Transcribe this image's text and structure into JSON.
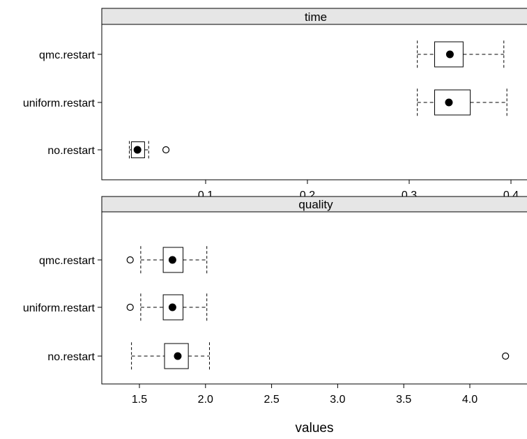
{
  "xlabel": "values",
  "chart_data": [
    {
      "type": "boxplot",
      "panel": "time",
      "categories": [
        "no.restart",
        "uniform.restart",
        "qmc.restart"
      ],
      "xlim": [
        0.0,
        0.4
      ],
      "xticks": [
        0.1,
        0.2,
        0.3,
        0.4
      ],
      "xtick_labels": [
        "0.1",
        "0.2",
        "0.3",
        "0.4"
      ],
      "boxes": [
        {
          "category": "no.restart",
          "whisker_low": 0.025,
          "q1": 0.027,
          "median": 0.033,
          "q3": 0.04,
          "whisker_high": 0.044,
          "outliers": [
            0.061
          ]
        },
        {
          "category": "uniform.restart",
          "whisker_low": 0.308,
          "q1": 0.325,
          "median": 0.339,
          "q3": 0.36,
          "whisker_high": 0.396,
          "outliers": []
        },
        {
          "category": "qmc.restart",
          "whisker_low": 0.308,
          "q1": 0.325,
          "median": 0.34,
          "q3": 0.353,
          "whisker_high": 0.393,
          "outliers": []
        }
      ]
    },
    {
      "type": "boxplot",
      "panel": "quality",
      "categories": [
        "no.restart",
        "uniform.restart",
        "qmc.restart"
      ],
      "xlim": [
        1.25,
        4.35
      ],
      "xticks": [
        1.5,
        2.0,
        2.5,
        3.0,
        3.5,
        4.0
      ],
      "xtick_labels": [
        "1.5",
        "2.0",
        "2.5",
        "3.0",
        "3.5",
        "4.0"
      ],
      "boxes": [
        {
          "category": "no.restart",
          "whisker_low": 1.44,
          "q1": 1.69,
          "median": 1.79,
          "q3": 1.87,
          "whisker_high": 2.03,
          "outliers": [
            4.27
          ]
        },
        {
          "category": "uniform.restart",
          "whisker_low": 1.51,
          "q1": 1.68,
          "median": 1.75,
          "q3": 1.83,
          "whisker_high": 2.01,
          "outliers": [
            1.43
          ]
        },
        {
          "category": "qmc.restart",
          "whisker_low": 1.51,
          "q1": 1.68,
          "median": 1.75,
          "q3": 1.83,
          "whisker_high": 2.01,
          "outliers": [
            1.43
          ]
        }
      ]
    }
  ]
}
